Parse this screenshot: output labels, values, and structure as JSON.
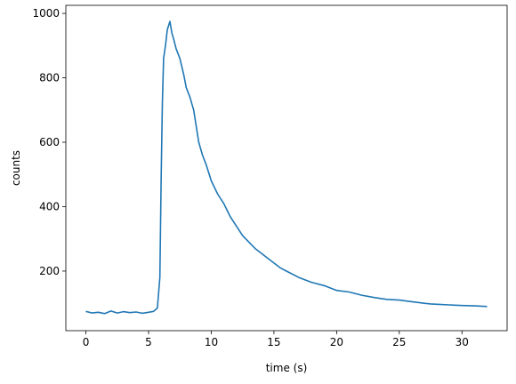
{
  "chart_data": {
    "type": "line",
    "xlabel": "time (s)",
    "ylabel": "counts",
    "xlim": [
      -1.6,
      33.6
    ],
    "ylim": [
      15,
      1025
    ],
    "x_ticks": [
      0,
      5,
      10,
      15,
      20,
      25,
      30
    ],
    "y_ticks": [
      200,
      400,
      600,
      800,
      1000
    ],
    "grid": false,
    "series": [
      {
        "color": "#1f77b4",
        "x": [
          0.0,
          0.5,
          1.0,
          1.5,
          2.0,
          2.5,
          3.0,
          3.5,
          4.0,
          4.5,
          5.0,
          5.4,
          5.7,
          5.9,
          6.0,
          6.1,
          6.2,
          6.35,
          6.5,
          6.7,
          6.85,
          7.0,
          7.2,
          7.5,
          7.8,
          8.0,
          8.3,
          8.6,
          9.0,
          9.3,
          9.6,
          10.0,
          10.5,
          11.0,
          11.5,
          12.0,
          12.5,
          13.0,
          13.5,
          14.0,
          14.5,
          15.0,
          15.5,
          16.0,
          17.0,
          18.0,
          19.0,
          20.0,
          21.0,
          22.0,
          23.0,
          24.0,
          25.0,
          26.0,
          27.0,
          27.5,
          28.0,
          29.0,
          30.0,
          31.0,
          32.0
        ],
        "y": [
          75,
          70,
          72,
          68,
          76,
          70,
          74,
          71,
          73,
          69,
          72,
          75,
          85,
          180,
          480,
          720,
          860,
          900,
          950,
          975,
          940,
          920,
          890,
          860,
          810,
          770,
          740,
          700,
          600,
          560,
          530,
          480,
          440,
          410,
          370,
          340,
          310,
          290,
          270,
          255,
          240,
          225,
          210,
          200,
          180,
          165,
          155,
          140,
          135,
          125,
          118,
          112,
          110,
          105,
          100,
          98,
          97,
          95,
          93,
          92,
          90
        ]
      }
    ]
  }
}
